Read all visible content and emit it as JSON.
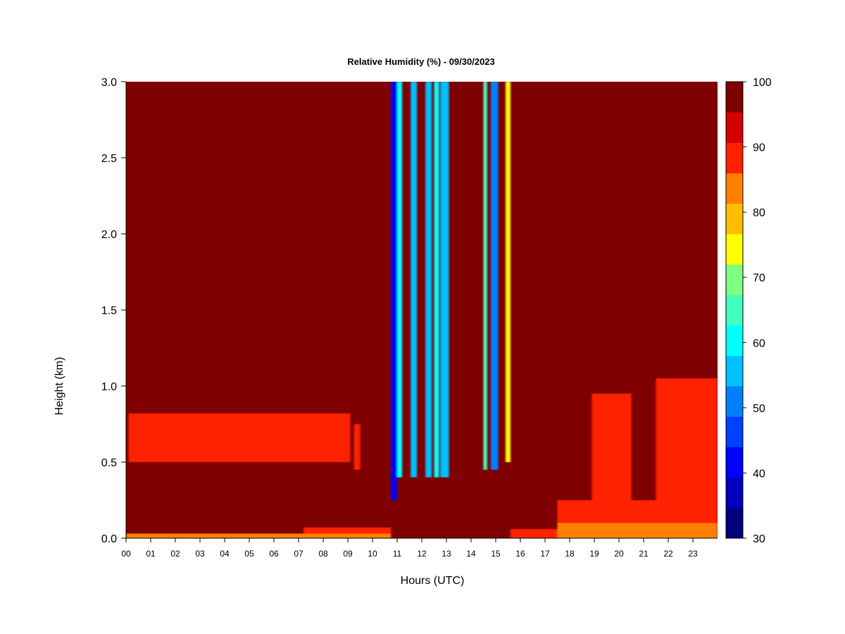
{
  "chart_data": {
    "type": "heatmap",
    "title": "Relative Humidity (%) - 09/30/2023",
    "xlabel": "Hours (UTC)",
    "ylabel": "Height (km)",
    "xlim": [
      0,
      24
    ],
    "ylim": [
      0.0,
      3.0
    ],
    "x_ticks": [
      "00",
      "01",
      "02",
      "03",
      "04",
      "05",
      "06",
      "07",
      "08",
      "09",
      "10",
      "11",
      "12",
      "13",
      "14",
      "15",
      "16",
      "17",
      "18",
      "19",
      "20",
      "21",
      "22",
      "23"
    ],
    "y_ticks": [
      "0.0",
      "0.5",
      "1.0",
      "1.5",
      "2.0",
      "2.5",
      "3.0"
    ],
    "colorbar": {
      "min": 30,
      "max": 100,
      "step": 5,
      "tick_labels": [
        "30",
        "40",
        "50",
        "60",
        "70",
        "80",
        "90",
        "100"
      ],
      "colors": [
        "#00007f",
        "#0000bf",
        "#0000ff",
        "#0040ff",
        "#0080ff",
        "#00c0ff",
        "#00ffff",
        "#40ffbf",
        "#80ff80",
        "#ffff00",
        "#ffbf00",
        "#ff8000",
        "#ff2000",
        "#d40000",
        "#7f0000"
      ]
    },
    "background_value": 100,
    "regions": [
      {
        "x0": 0.0,
        "x1": 10.75,
        "y0": 0.0,
        "y1": 0.03,
        "value": 87
      },
      {
        "x0": 7.2,
        "x1": 10.75,
        "y0": 0.03,
        "y1": 0.07,
        "value": 92
      },
      {
        "x0": 0.1,
        "x1": 9.1,
        "y0": 0.5,
        "y1": 0.82,
        "value": 93
      },
      {
        "x0": 9.25,
        "x1": 9.5,
        "y0": 0.45,
        "y1": 0.75,
        "value": 93
      },
      {
        "x0": 10.75,
        "x1": 11.0,
        "y0": 0.25,
        "y1": 3.0,
        "value": 40
      },
      {
        "x0": 11.0,
        "x1": 11.2,
        "y0": 0.4,
        "y1": 3.0,
        "value": 60
      },
      {
        "x0": 11.55,
        "x1": 11.8,
        "y0": 0.4,
        "y1": 3.0,
        "value": 55
      },
      {
        "x0": 12.15,
        "x1": 12.4,
        "y0": 0.4,
        "y1": 3.0,
        "value": 55
      },
      {
        "x0": 12.5,
        "x1": 12.7,
        "y0": 0.4,
        "y1": 3.0,
        "value": 60
      },
      {
        "x0": 12.75,
        "x1": 13.1,
        "y0": 0.4,
        "y1": 3.0,
        "value": 55
      },
      {
        "x0": 14.5,
        "x1": 14.65,
        "y0": 0.45,
        "y1": 3.0,
        "value": 65
      },
      {
        "x0": 14.8,
        "x1": 15.1,
        "y0": 0.45,
        "y1": 3.0,
        "value": 50
      },
      {
        "x0": 15.4,
        "x1": 15.6,
        "y0": 0.5,
        "y1": 3.0,
        "value": 75
      },
      {
        "x0": 15.6,
        "x1": 17.5,
        "y0": 0.0,
        "y1": 0.06,
        "value": 92
      },
      {
        "x0": 17.5,
        "x1": 24.0,
        "y0": 0.0,
        "y1": 0.1,
        "value": 85
      },
      {
        "x0": 17.5,
        "x1": 24.0,
        "y0": 0.1,
        "y1": 0.25,
        "value": 92
      },
      {
        "x0": 18.9,
        "x1": 20.5,
        "y0": 0.25,
        "y1": 0.95,
        "value": 92
      },
      {
        "x0": 21.5,
        "x1": 24.0,
        "y0": 0.25,
        "y1": 1.05,
        "value": 91
      }
    ]
  }
}
